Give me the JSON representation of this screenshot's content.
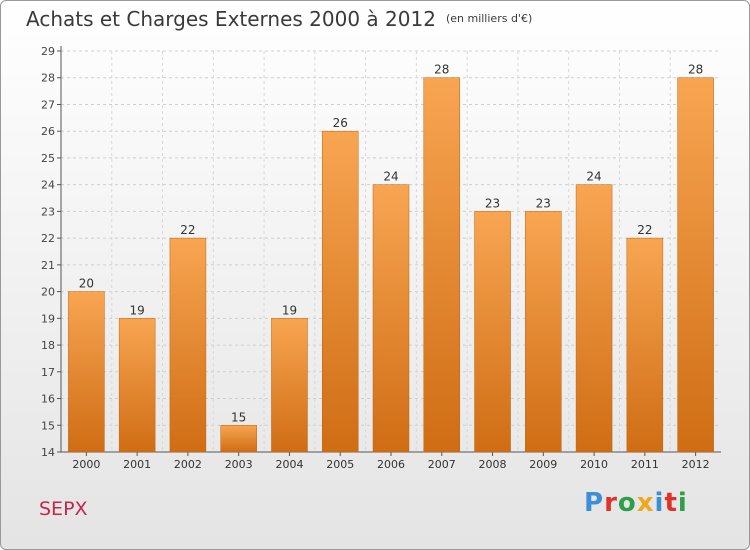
{
  "header": {
    "title": "Achats et Charges Externes 2000 à 2012",
    "unit": "(en milliers d'€)"
  },
  "footer": {
    "place": "SEPX",
    "logo": "Proxiti"
  },
  "colors": {
    "bar_top": "#f8a552",
    "bar_bottom": "#cf6d14",
    "place": "#c4264e"
  },
  "chart_data": {
    "type": "bar",
    "title": "Achats et Charges Externes 2000 à 2012",
    "subtitle": "(en milliers d'€)",
    "categories": [
      "2000",
      "2001",
      "2002",
      "2003",
      "2004",
      "2005",
      "2006",
      "2007",
      "2008",
      "2009",
      "2010",
      "2011",
      "2012"
    ],
    "values": [
      20,
      19,
      22,
      15,
      19,
      26,
      24,
      28,
      23,
      23,
      24,
      22,
      28
    ],
    "ylim": [
      14,
      29
    ],
    "yticks": [
      14,
      15,
      16,
      17,
      18,
      19,
      20,
      21,
      22,
      23,
      24,
      25,
      26,
      27,
      28,
      29
    ],
    "grid": true,
    "legend": "none"
  }
}
